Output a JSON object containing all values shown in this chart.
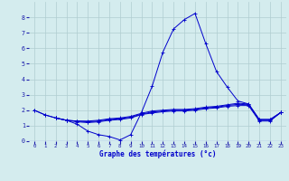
{
  "title": "Graphe des températures (°c)",
  "bg_color": "#d4ecee",
  "grid_color": "#b0cdd0",
  "line_color": "#0000cc",
  "xlim": [
    -0.5,
    23.5
  ],
  "ylim": [
    0,
    9
  ],
  "xticks": [
    0,
    1,
    2,
    3,
    4,
    5,
    6,
    7,
    8,
    9,
    10,
    11,
    12,
    13,
    14,
    15,
    16,
    17,
    18,
    19,
    20,
    21,
    22,
    23
  ],
  "yticks": [
    0,
    1,
    2,
    3,
    4,
    5,
    6,
    7,
    8
  ],
  "series": {
    "main_peak": {
      "x": [
        0,
        1,
        2,
        3,
        4,
        5,
        6,
        7,
        8,
        9,
        10,
        11,
        12,
        13,
        14,
        15,
        16,
        17,
        18,
        19,
        20,
        21,
        22,
        23
      ],
      "y": [
        2.0,
        1.7,
        1.5,
        1.35,
        1.1,
        0.65,
        0.42,
        0.3,
        0.08,
        0.42,
        1.85,
        3.55,
        5.75,
        7.25,
        7.85,
        8.25,
        6.3,
        4.5,
        3.5,
        2.6,
        2.4,
        1.4,
        1.4,
        1.85
      ]
    },
    "flat1": {
      "x": [
        0,
        1,
        2,
        3,
        4,
        5,
        6,
        7,
        8,
        9,
        10,
        11,
        12,
        13,
        14,
        15,
        16,
        17,
        18,
        19,
        20,
        21,
        22,
        23
      ],
      "y": [
        2.0,
        1.7,
        1.5,
        1.35,
        1.3,
        1.3,
        1.35,
        1.45,
        1.5,
        1.6,
        1.8,
        1.95,
        2.0,
        2.05,
        2.05,
        2.1,
        2.2,
        2.25,
        2.35,
        2.45,
        2.4,
        1.4,
        1.4,
        1.85
      ]
    },
    "flat2": {
      "x": [
        2,
        3,
        4,
        5,
        6,
        7,
        8,
        9,
        10,
        11,
        12,
        13,
        14,
        15,
        16,
        17,
        18,
        19,
        20,
        21,
        22,
        23
      ],
      "y": [
        1.5,
        1.35,
        1.3,
        1.25,
        1.3,
        1.4,
        1.45,
        1.55,
        1.75,
        1.88,
        1.95,
        2.0,
        2.0,
        2.05,
        2.15,
        2.2,
        2.3,
        2.38,
        2.35,
        1.35,
        1.35,
        1.85
      ]
    },
    "flat3": {
      "x": [
        2,
        3,
        4,
        5,
        6,
        7,
        8,
        9,
        10,
        11,
        12,
        13,
        14,
        15,
        16,
        17,
        18,
        19,
        20,
        21,
        22,
        23
      ],
      "y": [
        1.5,
        1.35,
        1.25,
        1.2,
        1.25,
        1.35,
        1.4,
        1.5,
        1.72,
        1.82,
        1.9,
        1.95,
        1.95,
        2.0,
        2.1,
        2.15,
        2.25,
        2.3,
        2.3,
        1.3,
        1.3,
        1.85
      ]
    }
  }
}
